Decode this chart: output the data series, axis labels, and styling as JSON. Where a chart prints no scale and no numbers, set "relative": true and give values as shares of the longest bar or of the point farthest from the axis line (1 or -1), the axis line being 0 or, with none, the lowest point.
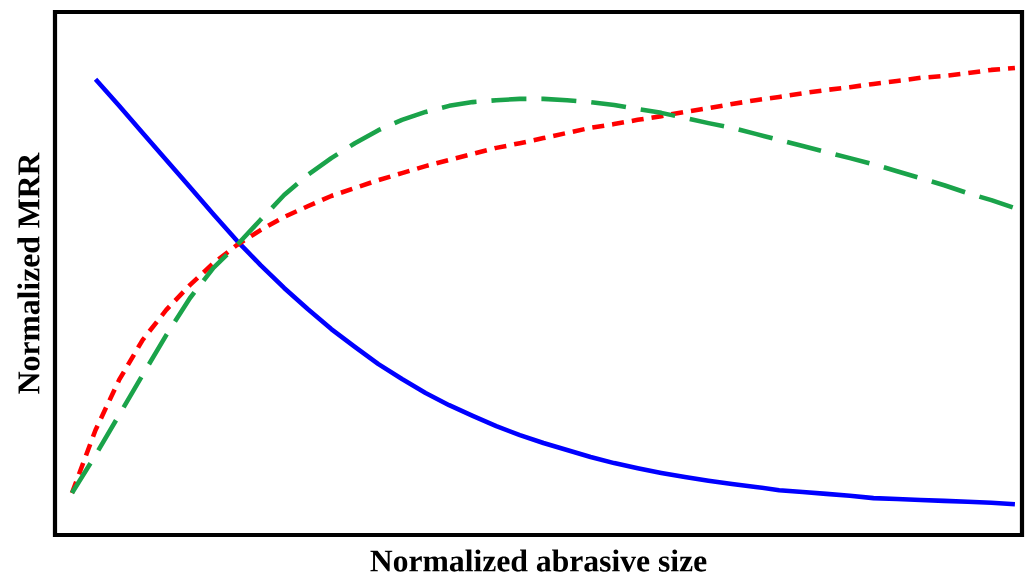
{
  "chart_data": {
    "type": "line",
    "relative": true,
    "xlabel": "Normalized abrasive size",
    "ylabel": "Normalized MRR",
    "marker": "none",
    "categories": [
      null,
      null,
      null,
      null,
      null,
      null,
      null,
      null,
      null,
      null,
      null,
      null,
      null,
      null,
      null,
      null,
      null,
      null,
      null,
      null,
      null,
      null,
      null,
      null,
      null,
      null,
      null,
      null,
      null,
      null,
      null,
      null,
      null,
      null,
      null,
      null,
      null,
      null,
      null,
      null,
      null
    ],
    "series": [
      {
        "color": "#0000ff",
        "line_style": "solid",
        "values": [
          null,
          0.976,
          0.919,
          0.861,
          0.803,
          0.745,
          0.687,
          0.63,
          0.578,
          0.529,
          0.484,
          0.441,
          0.403,
          0.366,
          0.334,
          0.304,
          0.278,
          0.255,
          0.233,
          0.214,
          0.197,
          0.182,
          0.167,
          0.154,
          0.143,
          0.133,
          0.124,
          0.116,
          0.109,
          0.103,
          0.096,
          0.092,
          0.088,
          0.084,
          0.079,
          0.077,
          0.075,
          0.073,
          0.071,
          0.069,
          0.066
        ]
      },
      {
        "color": "#ff0000",
        "line_style": "dashed",
        "values": [
          0.09,
          0.225,
          0.332,
          0.418,
          0.482,
          0.535,
          0.582,
          0.621,
          0.653,
          0.681,
          0.704,
          0.726,
          0.743,
          0.76,
          0.775,
          0.79,
          0.803,
          0.816,
          0.829,
          0.839,
          0.85,
          0.861,
          0.872,
          0.88,
          0.889,
          0.897,
          0.906,
          0.914,
          0.923,
          0.931,
          0.938,
          0.946,
          0.953,
          0.959,
          0.966,
          0.972,
          0.979,
          0.983,
          0.989,
          0.996,
          1
        ]
      },
      {
        "color": "#1aa34a",
        "line_style": "dashed",
        "values": [
          0.09,
          0.171,
          0.257,
          0.343,
          0.428,
          0.507,
          0.572,
          0.621,
          0.675,
          0.728,
          0.771,
          0.807,
          0.839,
          0.867,
          0.889,
          0.906,
          0.919,
          0.927,
          0.931,
          0.934,
          0.934,
          0.931,
          0.927,
          0.921,
          0.912,
          0.904,
          0.893,
          0.882,
          0.872,
          0.859,
          0.846,
          0.833,
          0.82,
          0.807,
          0.794,
          0.779,
          0.764,
          0.749,
          0.732,
          0.717,
          0.7
        ]
      }
    ]
  }
}
